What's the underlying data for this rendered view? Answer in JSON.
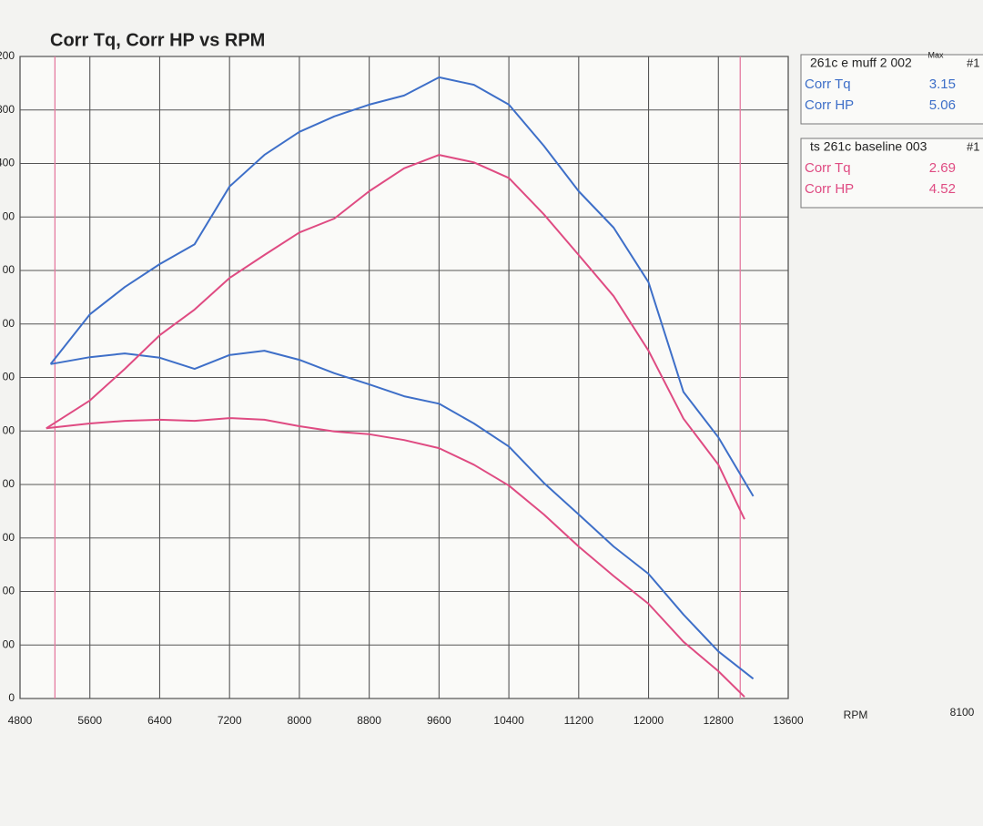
{
  "chart_data": {
    "type": "line",
    "title": "Corr Tq, Corr HP vs RPM",
    "xlabel": "RPM",
    "note": "8100",
    "xlim": [
      4800,
      13600
    ],
    "xticks": [
      4800,
      5600,
      6400,
      7200,
      8000,
      8800,
      9600,
      10400,
      11200,
      12000,
      12800,
      13600
    ],
    "ylim": [
      0,
      12
    ],
    "yticks": [
      {
        "value": 0,
        "label": "0"
      },
      {
        "value": 1,
        "label": "00"
      },
      {
        "value": 2,
        "label": "00"
      },
      {
        "value": 3,
        "label": "00"
      },
      {
        "value": 4,
        "label": "00"
      },
      {
        "value": 5,
        "label": "00"
      },
      {
        "value": 6,
        "label": "00"
      },
      {
        "value": 7,
        "label": "00"
      },
      {
        "value": 8,
        "label": "00"
      },
      {
        "value": 9,
        "label": "00"
      },
      {
        "value": 10,
        "label": "400"
      },
      {
        "value": 11,
        "label": "800"
      },
      {
        "value": 12,
        "label": "200"
      }
    ],
    "grid": true,
    "vlines": [
      5200,
      13050
    ],
    "vline_color": "#e57aa0",
    "runs": [
      {
        "title": "261c e muff 2 002",
        "tag": "#1",
        "max_header": "Max",
        "color": "#3e6fc8"
      },
      {
        "title": "ts 261c baseline 003",
        "tag": "#1",
        "color": "#df4b82"
      }
    ],
    "series": [
      {
        "name": "Corr Tq",
        "run": 0,
        "color": "#3e6fc8",
        "max": 3.15,
        "x": [
          5150,
          5600,
          6000,
          6400,
          6800,
          7200,
          7600,
          8000,
          8400,
          8800,
          9200,
          9600,
          10000,
          10400,
          10800,
          11200,
          11600,
          12000,
          12400,
          12800,
          13200
        ],
        "values": [
          6.25,
          6.38,
          6.45,
          6.37,
          6.16,
          6.42,
          6.5,
          6.33,
          6.08,
          5.87,
          5.65,
          5.51,
          5.14,
          4.71,
          4.03,
          3.44,
          2.84,
          2.33,
          1.57,
          0.88,
          0.37
        ]
      },
      {
        "name": "Corr HP",
        "run": 0,
        "color": "#3e6fc8",
        "max": 5.06,
        "x": [
          5150,
          5600,
          6000,
          6400,
          6800,
          7200,
          7600,
          8000,
          8400,
          8800,
          9200,
          9600,
          10000,
          10400,
          10800,
          11200,
          11600,
          12000,
          12400,
          12800,
          13200
        ],
        "values": [
          6.25,
          7.18,
          7.69,
          8.12,
          8.49,
          9.57,
          10.16,
          10.59,
          10.88,
          11.1,
          11.27,
          11.61,
          11.47,
          11.1,
          10.33,
          9.48,
          8.8,
          7.78,
          5.73,
          4.88,
          3.78
        ]
      },
      {
        "name": "Corr Tq",
        "run": 1,
        "color": "#df4b82",
        "max": 2.69,
        "x": [
          5100,
          5600,
          6000,
          6400,
          6800,
          7200,
          7600,
          8000,
          8400,
          8800,
          9200,
          9600,
          10000,
          10400,
          10800,
          11200,
          11600,
          12000,
          12400,
          12800,
          13100
        ],
        "values": [
          5.05,
          5.14,
          5.19,
          5.21,
          5.19,
          5.24,
          5.21,
          5.09,
          4.99,
          4.94,
          4.83,
          4.68,
          4.37,
          3.98,
          3.44,
          2.84,
          2.29,
          1.77,
          1.06,
          0.51,
          0.03
        ]
      },
      {
        "name": "Corr HP",
        "run": 1,
        "color": "#df4b82",
        "max": 4.52,
        "x": [
          5100,
          5600,
          6000,
          6400,
          6800,
          7200,
          7600,
          8000,
          8400,
          8800,
          9200,
          9600,
          10000,
          10400,
          10800,
          11200,
          11600,
          12000,
          12400,
          12800,
          13100
        ],
        "values": [
          5.05,
          5.57,
          6.16,
          6.79,
          7.27,
          7.86,
          8.29,
          8.71,
          8.97,
          9.48,
          9.91,
          10.16,
          10.02,
          9.73,
          9.05,
          8.29,
          7.52,
          6.5,
          5.23,
          4.37,
          3.35
        ]
      }
    ]
  }
}
